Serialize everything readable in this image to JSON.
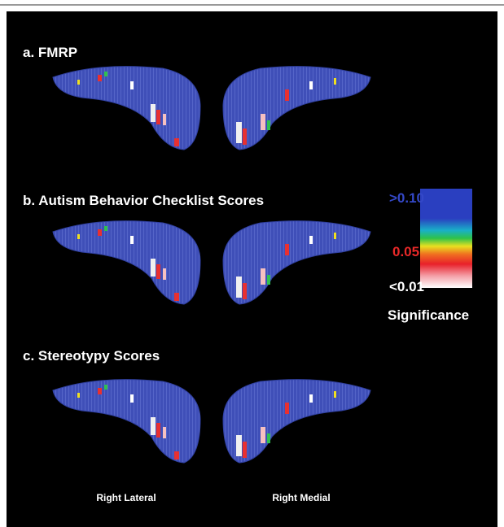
{
  "panels": [
    {
      "label": "a. FMRP"
    },
    {
      "label": "b. Autism Behavior Checklist Scores"
    },
    {
      "label": "c. Stereotypy Scores"
    }
  ],
  "legend": {
    "high": ">0.10",
    "mid": "0.05",
    "low": "<0.01",
    "title": "Significance"
  },
  "views": [
    "Right Lateral",
    "Right Medial"
  ]
}
